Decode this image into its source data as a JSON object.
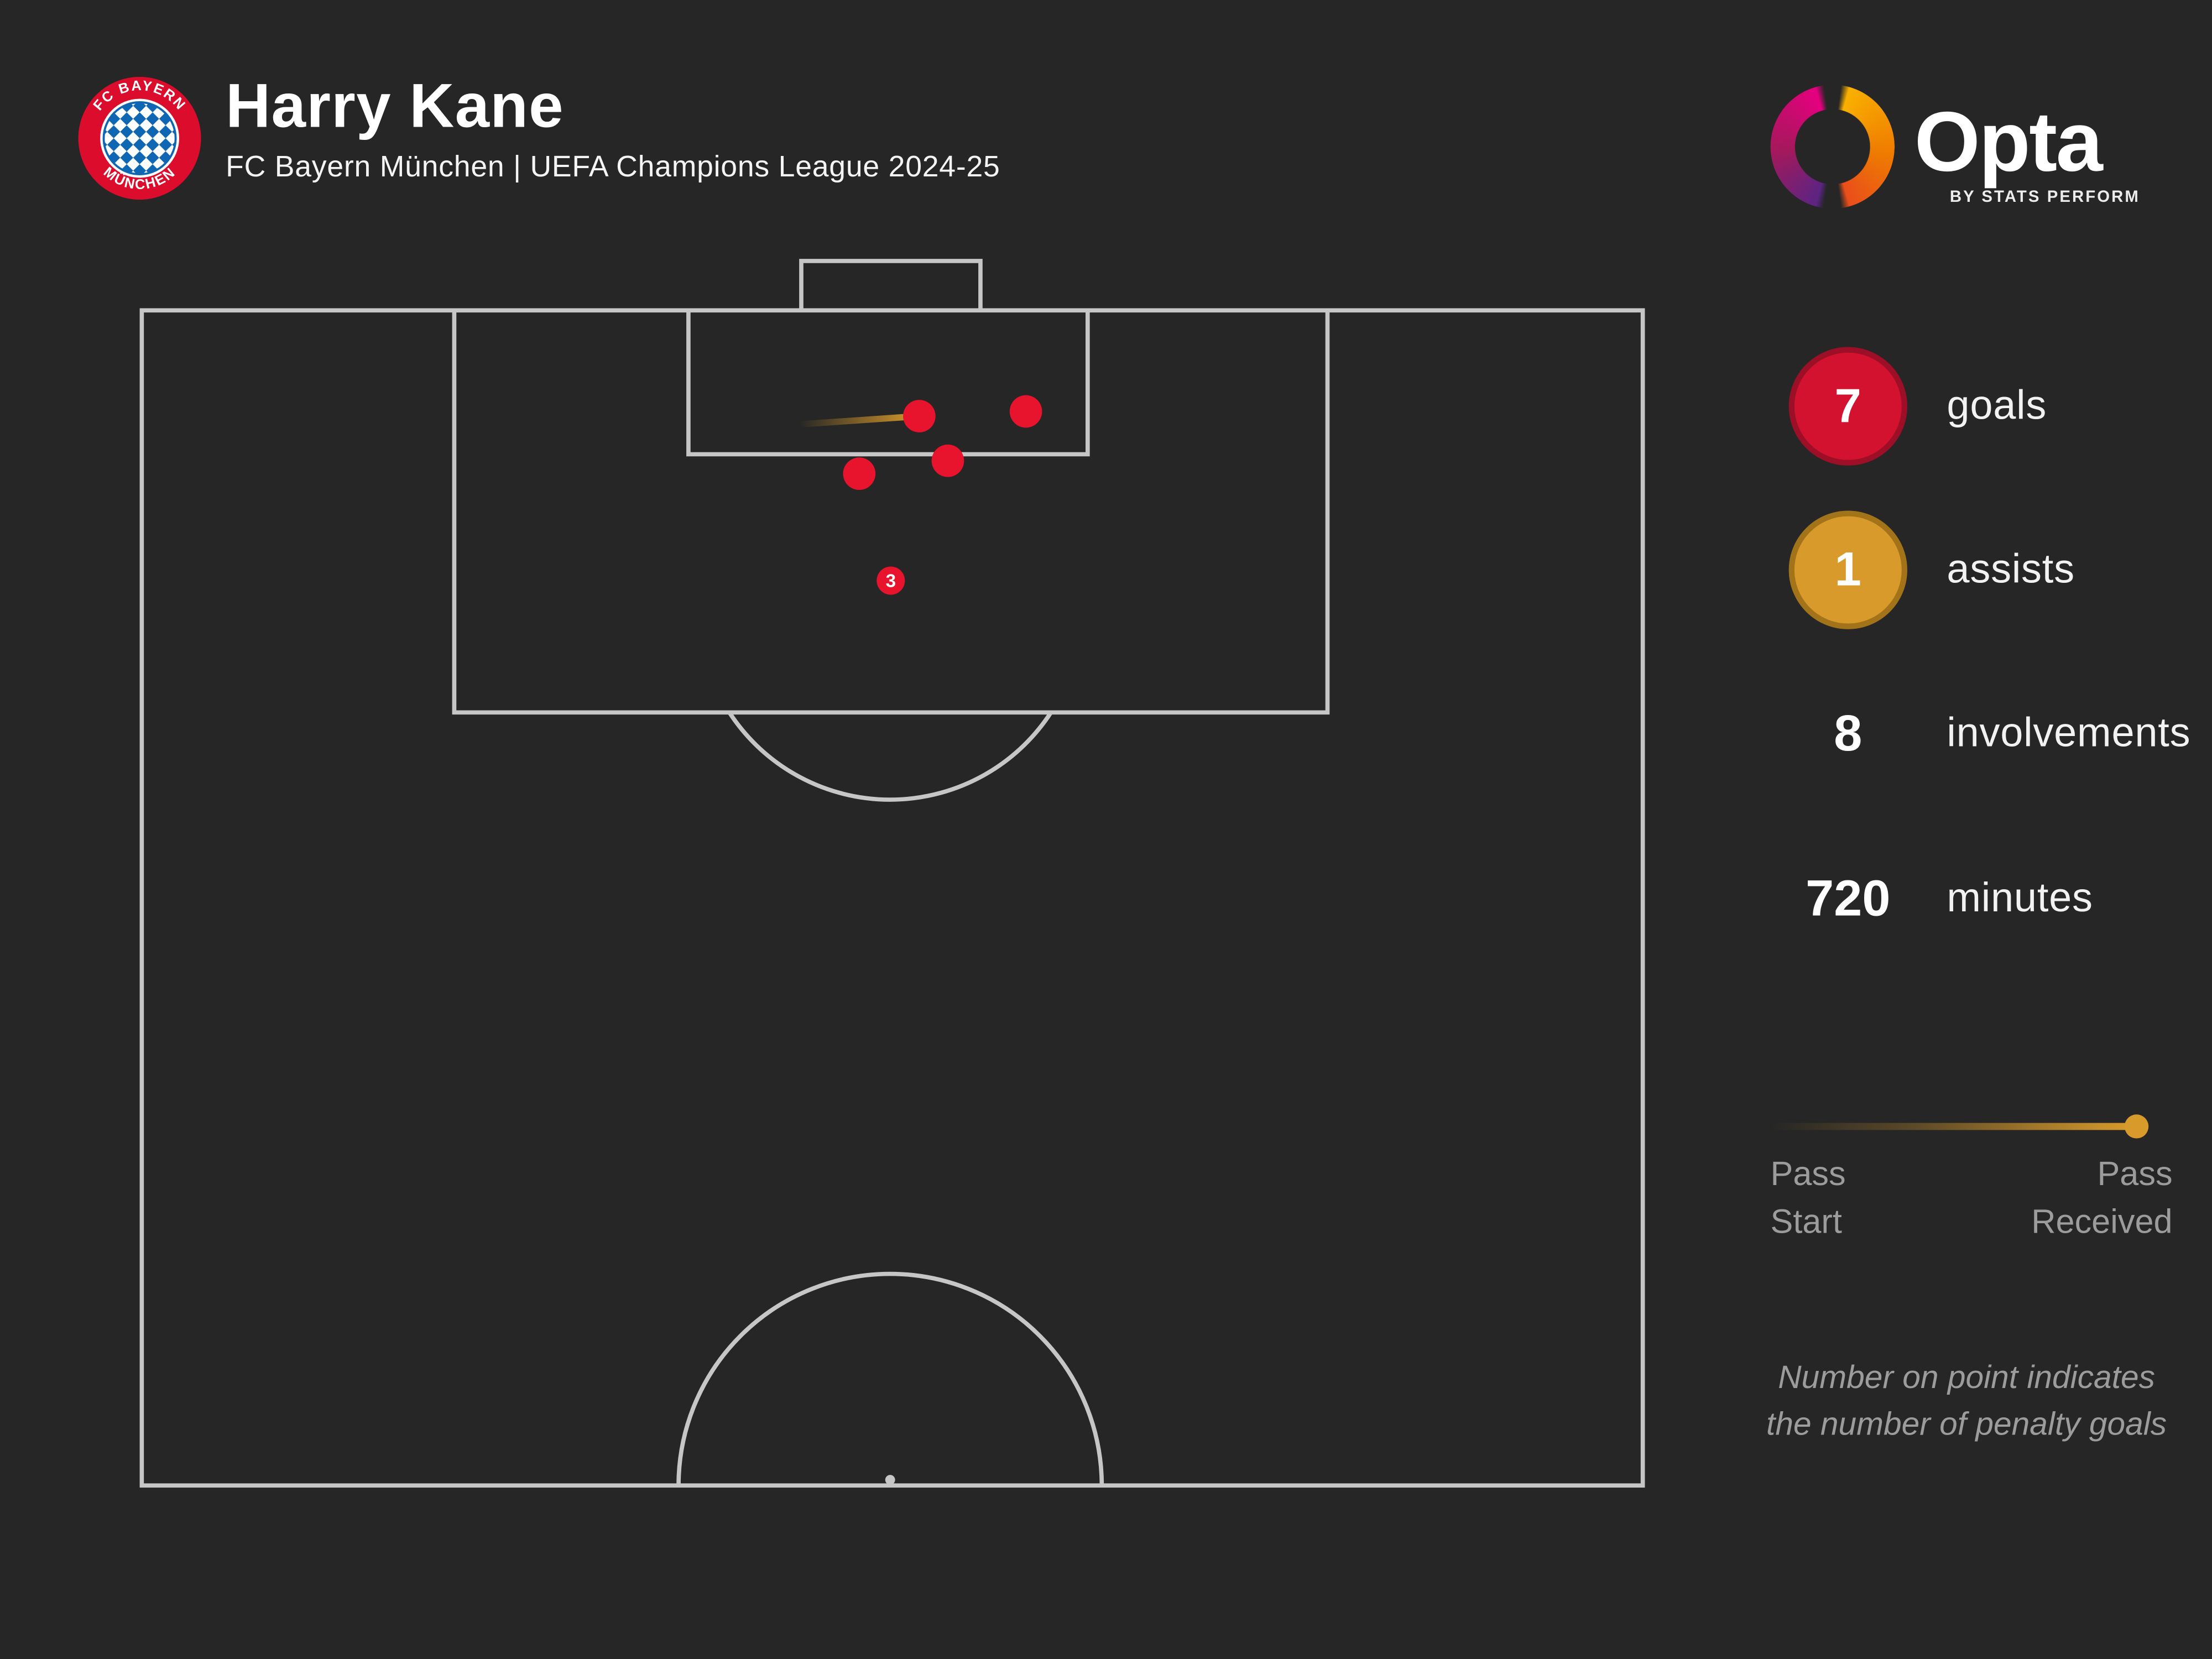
{
  "header": {
    "title": "Harry Kane",
    "subtitle": "FC Bayern München | UEFA Champions League 2024-25",
    "badge": {
      "top_text": "FC BAYERN",
      "bottom_text": "MÜNCHEN"
    }
  },
  "brand": {
    "wordmark": "Opta",
    "tagline": "BY STATS PERFORM"
  },
  "stats": [
    {
      "value": "7",
      "label": "goals",
      "badge": "red"
    },
    {
      "value": "1",
      "label": "assists",
      "badge": "gold"
    },
    {
      "value": "8",
      "label": "involvements",
      "badge": "none"
    },
    {
      "value": "720",
      "label": "minutes",
      "badge": "none"
    }
  ],
  "legend": {
    "start_line1": "Pass",
    "start_line2": "Start",
    "end_line1": "Pass",
    "end_line2": "Received"
  },
  "footnote": {
    "line1": "Number on point indicates",
    "line2": "the number of penalty goals"
  },
  "chart_data": {
    "type": "scatter",
    "title": "Harry Kane goal involvements map, UEFA Champions League 2024-25",
    "pitch": {
      "orientation": "attacking-goal-at-top",
      "coords": "percent of shown half-pitch width/height from top-left corner"
    },
    "goals": [
      {
        "x_pct": 51.8,
        "y_pct": 9.0
      },
      {
        "x_pct": 58.9,
        "y_pct": 8.6
      },
      {
        "x_pct": 47.8,
        "y_pct": 13.9
      },
      {
        "x_pct": 53.7,
        "y_pct": 12.8
      }
    ],
    "penalty_goals_marker": {
      "x_pct": 49.9,
      "y_pct": 23.0,
      "count": "3"
    },
    "assists": [
      {
        "x1_pct": 43.8,
        "y1_pct": 9.7,
        "x2_pct": 51.8,
        "y2_pct": 9.0
      }
    ],
    "totals": {
      "goals": 7,
      "assists": 1,
      "involvements": 8,
      "minutes": 720,
      "penalty_goals": 3
    }
  },
  "colors": {
    "background": "#262626",
    "pitch_line": "#c6c6c6",
    "goal_red": "#e8132c",
    "stat_red": "#d2122e",
    "stat_red_edge": "#9c0f26",
    "gold": "#d89b2b",
    "gold_edge": "#a3731a",
    "muted_text": "#9c9c9c"
  }
}
